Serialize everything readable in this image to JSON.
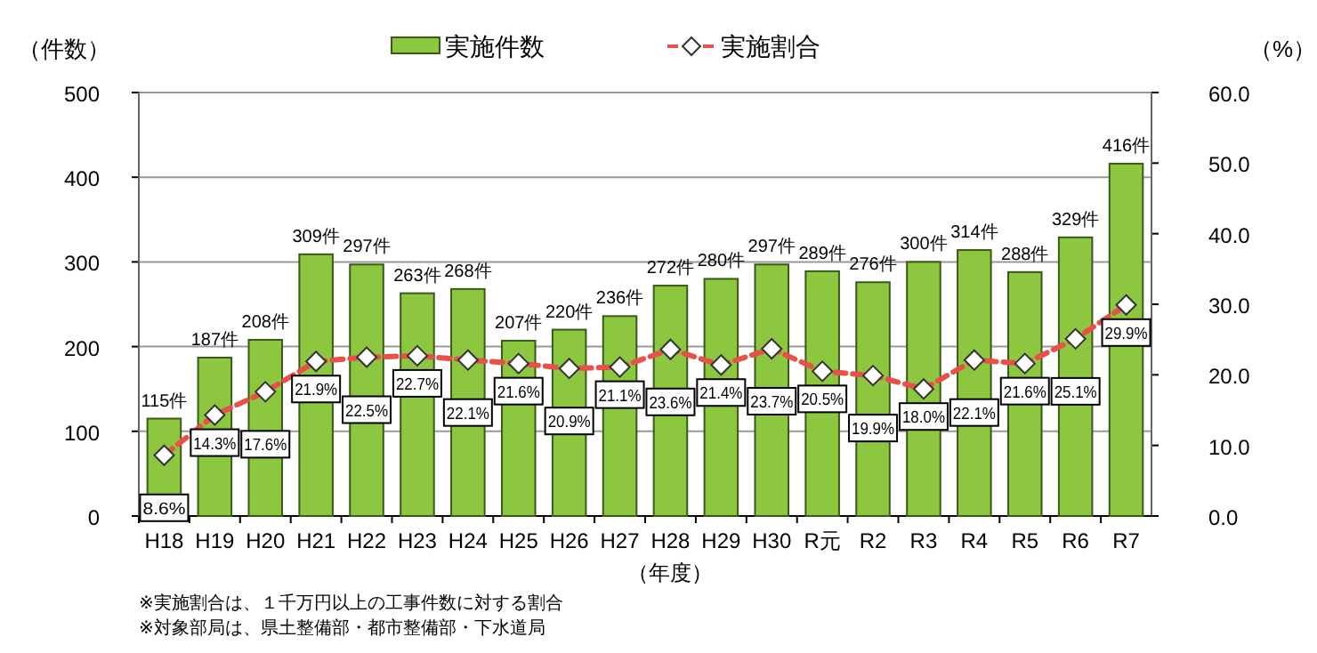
{
  "chart_data": {
    "type": "bar",
    "ylabel": "（件数）",
    "y2label": "（%）",
    "xlabel": "（年度）",
    "categories": [
      "H18",
      "H19",
      "H20",
      "H21",
      "H22",
      "H23",
      "H24",
      "H25",
      "H26",
      "H27",
      "H28",
      "H29",
      "H30",
      "R元",
      "R2",
      "R3",
      "R4",
      "R5",
      "R6",
      "R7"
    ],
    "series": [
      {
        "name": "実施件数",
        "color": "#8dc63f",
        "values": [
          115,
          187,
          208,
          309,
          297,
          263,
          268,
          207,
          220,
          236,
          272,
          280,
          297,
          289,
          276,
          300,
          314,
          288,
          329,
          416
        ],
        "value_labels": [
          "115件",
          "187件",
          "208件",
          "309件",
          "297件",
          "263件",
          "268件",
          "207件",
          "220件",
          "236件",
          "272件",
          "280件",
          "297件",
          "289件",
          "276件",
          "300件",
          "314件",
          "288件",
          "329件",
          "416件"
        ]
      },
      {
        "name": "実施割合",
        "type": "line",
        "axis": "y2",
        "color": "#e8504a",
        "values": [
          8.6,
          14.3,
          17.6,
          21.9,
          22.5,
          22.7,
          22.1,
          21.6,
          20.9,
          21.1,
          23.6,
          21.4,
          23.7,
          20.5,
          19.9,
          18.0,
          22.1,
          21.6,
          25.1,
          29.9
        ],
        "value_labels": [
          "8.6%",
          "14.3%",
          "17.6%",
          "21.9%",
          "22.5%",
          "22.7%",
          "22.1%",
          "21.6%",
          "20.9%",
          "21.1%",
          "23.6%",
          "21.4%",
          "23.7%",
          "20.5%",
          "19.9%",
          "18.0%",
          "22.1%",
          "21.6%",
          "25.1%",
          "29.9%"
        ]
      }
    ],
    "ylim": [
      0,
      500
    ],
    "yticks": [
      0,
      100,
      200,
      300,
      400,
      500
    ],
    "y2lim": [
      0,
      60
    ],
    "y2ticks": [
      {
        "value": 0,
        "label": "0.0"
      },
      {
        "value": 10,
        "label": "10.0"
      },
      {
        "value": 20,
        "label": "20.0"
      },
      {
        "value": 30,
        "label": "30.0"
      },
      {
        "value": 40,
        "label": "40.0"
      },
      {
        "value": 50,
        "label": "50.0"
      },
      {
        "value": 60,
        "label": "60.0"
      }
    ],
    "grid": "y",
    "legend": "top",
    "marker": "diamond",
    "line_style": "dashed",
    "annotations": [
      "※実施割合は、１千万円以上の工事件数に対する割合",
      "※対象部局は、県土整備部・都市整備部・下水道局"
    ]
  }
}
